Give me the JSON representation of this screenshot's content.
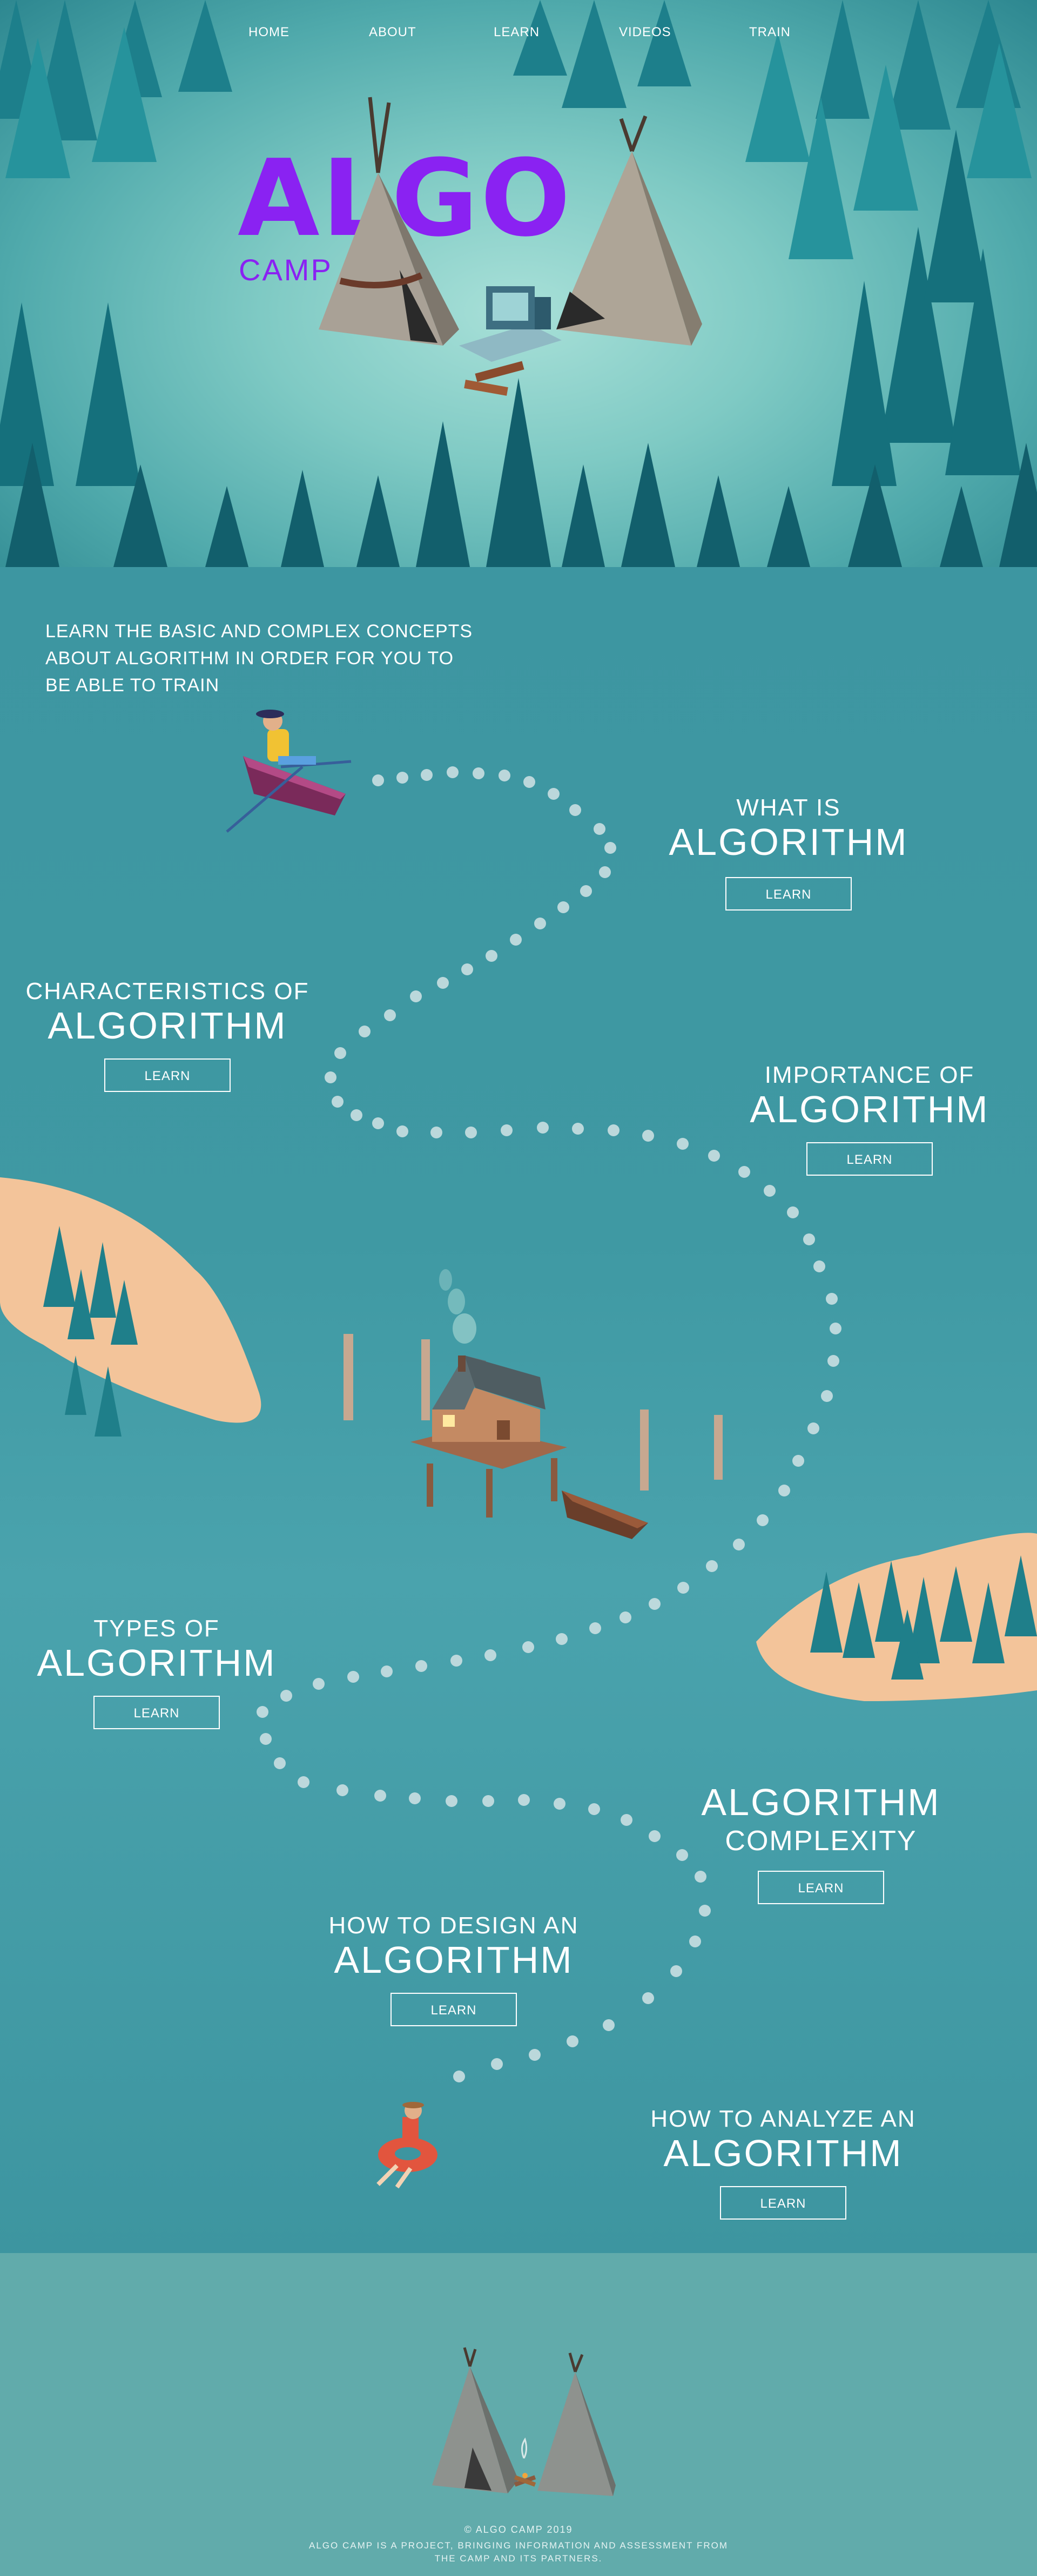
{
  "nav": {
    "home": "HOME",
    "about": "ABOUT",
    "learn": "LEARN",
    "videos": "VIDEOS",
    "train": "TRAIN"
  },
  "logo": {
    "title": "ALGO",
    "subtitle": "CAMP"
  },
  "intro": {
    "text": "LEARN THE BASIC AND COMPLEX CONCEPTS ABOUT ALGORITHM IN ORDER FOR YOU TO BE ABLE TO TRAIN"
  },
  "topics": [
    {
      "small": "WHAT IS",
      "big": "ALGORITHM",
      "button": "LEARN"
    },
    {
      "small": "CHARACTERISTICS OF",
      "big": "ALGORITHM",
      "button": "LEARN"
    },
    {
      "small": "IMPORTANCE OF",
      "big": "ALGORITHM",
      "button": "LEARN"
    },
    {
      "small": "TYPES OF",
      "big": "ALGORITHM",
      "button": "LEARN"
    },
    {
      "big": "ALGORITHM",
      "small": "COMPLEXITY",
      "button": "LEARN"
    },
    {
      "small": "HOW TO DESIGN AN",
      "big": "ALGORITHM",
      "button": "LEARN"
    },
    {
      "small": "HOW TO ANALYZE AN",
      "big": "ALGORITHM",
      "button": "LEARN"
    }
  ],
  "footer": {
    "copyright": "© ALGO CAMP 2019",
    "note": "ALGO CAMP IS A PROJECT, BRINGING INFORMATION AND ASSESSMENT FROM THE CAMP AND ITS PARTNERS."
  },
  "colors": {
    "brand_purple": "#8a22f2",
    "water": "#449aa3",
    "footer": "#61abab",
    "sand": "#f3c49a",
    "tree": "#1f7f8a"
  },
  "icons": [
    "boat-icon",
    "house-on-stilts-icon",
    "tent-icon",
    "computer-icon",
    "campfire-icon",
    "inner-tube-icon",
    "pine-tree-icon"
  ]
}
